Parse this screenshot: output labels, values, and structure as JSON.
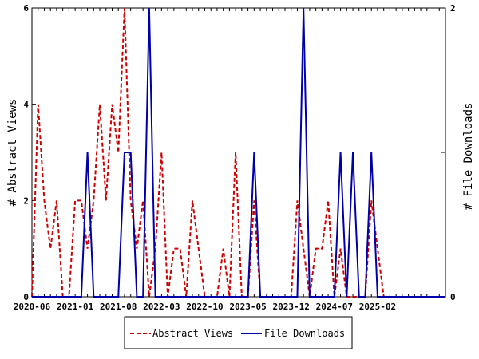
{
  "chart_data": {
    "type": "line",
    "ylabel_left": "# Abstract Views",
    "ylabel_right": "# File Downloads",
    "ylim_left": [
      0,
      6
    ],
    "ylim_right": [
      0,
      2
    ],
    "yticks_left": [
      "0",
      "2",
      "4",
      "6"
    ],
    "yticks_right": [
      "0",
      "1",
      "2"
    ],
    "xlim": [
      "2020-06",
      "2026-01"
    ],
    "xticks": [
      "2020-06",
      "2021-01",
      "2021-08",
      "2022-03",
      "2022-10",
      "2023-05",
      "2023-12",
      "2024-07",
      "2025-02"
    ],
    "legend_position": "bottom",
    "colors": {
      "abstract_views": "#cc0000",
      "file_downloads": "#0000aa"
    },
    "series": [
      {
        "name": "Abstract Views",
        "axis": "left",
        "style": "dashed",
        "x": [
          "2020-06",
          "2020-07",
          "2020-08",
          "2020-09",
          "2020-10",
          "2020-11",
          "2020-12",
          "2021-01",
          "2021-02",
          "2021-03",
          "2021-04",
          "2021-05",
          "2021-06",
          "2021-07",
          "2021-08",
          "2021-09",
          "2021-10",
          "2021-11",
          "2021-12",
          "2022-01",
          "2022-02",
          "2022-03",
          "2022-04",
          "2022-05",
          "2022-06",
          "2022-07",
          "2022-08",
          "2022-09",
          "2022-10",
          "2022-11",
          "2022-12",
          "2023-01",
          "2023-02",
          "2023-03",
          "2023-04",
          "2023-05",
          "2023-06",
          "2023-07",
          "2023-08",
          "2023-09",
          "2023-10",
          "2023-11",
          "2023-12",
          "2024-01",
          "2024-02",
          "2024-03",
          "2024-04",
          "2024-05",
          "2024-06",
          "2024-07",
          "2024-08",
          "2024-09",
          "2024-10",
          "2024-11",
          "2024-12",
          "2025-01",
          "2025-02",
          "2025-03",
          "2025-04",
          "2025-05",
          "2025-06",
          "2025-07",
          "2025-08",
          "2025-09",
          "2025-10",
          "2025-11",
          "2025-12",
          "2026-01"
        ],
        "values": [
          0,
          4,
          2,
          1,
          2,
          0,
          0,
          2,
          2,
          1,
          2,
          4,
          2,
          4,
          3,
          6,
          2,
          1,
          2,
          0,
          1,
          3,
          0,
          1,
          1,
          0,
          2,
          1,
          0,
          0,
          0,
          1,
          0,
          3,
          0,
          0,
          2,
          0,
          0,
          0,
          0,
          0,
          0,
          2,
          1,
          0,
          1,
          1,
          2,
          0,
          1,
          0,
          0,
          0,
          0,
          2,
          1,
          0,
          0,
          0,
          0,
          0,
          0,
          0,
          0,
          0,
          0,
          0
        ]
      },
      {
        "name": "File Downloads",
        "axis": "right",
        "style": "solid",
        "x": [
          "2020-06",
          "2020-07",
          "2020-08",
          "2020-09",
          "2020-10",
          "2020-11",
          "2020-12",
          "2021-01",
          "2021-02",
          "2021-03",
          "2021-04",
          "2021-05",
          "2021-06",
          "2021-07",
          "2021-08",
          "2021-09",
          "2021-10",
          "2021-11",
          "2021-12",
          "2022-01",
          "2022-02",
          "2022-03",
          "2022-04",
          "2022-05",
          "2022-06",
          "2022-07",
          "2022-08",
          "2022-09",
          "2022-10",
          "2022-11",
          "2022-12",
          "2023-01",
          "2023-02",
          "2023-03",
          "2023-04",
          "2023-05",
          "2023-06",
          "2023-07",
          "2023-08",
          "2023-09",
          "2023-10",
          "2023-11",
          "2023-12",
          "2024-01",
          "2024-02",
          "2024-03",
          "2024-04",
          "2024-05",
          "2024-06",
          "2024-07",
          "2024-08",
          "2024-09",
          "2024-10",
          "2024-11",
          "2024-12",
          "2025-01",
          "2025-02",
          "2025-03",
          "2025-04",
          "2025-05",
          "2025-06",
          "2025-07",
          "2025-08",
          "2025-09",
          "2025-10",
          "2025-11",
          "2025-12",
          "2026-01"
        ],
        "values": [
          0,
          0,
          0,
          0,
          0,
          0,
          0,
          0,
          0,
          1,
          0,
          0,
          0,
          0,
          0,
          1,
          1,
          0,
          0,
          2,
          0,
          0,
          0,
          0,
          0,
          0,
          0,
          0,
          0,
          0,
          0,
          0,
          0,
          0,
          0,
          0,
          1,
          0,
          0,
          0,
          0,
          0,
          0,
          0,
          2,
          0,
          0,
          0,
          0,
          0,
          1,
          0,
          1,
          0,
          0,
          1,
          0,
          0,
          0,
          0,
          0,
          0,
          0,
          0,
          0,
          0,
          0,
          0
        ]
      }
    ]
  }
}
